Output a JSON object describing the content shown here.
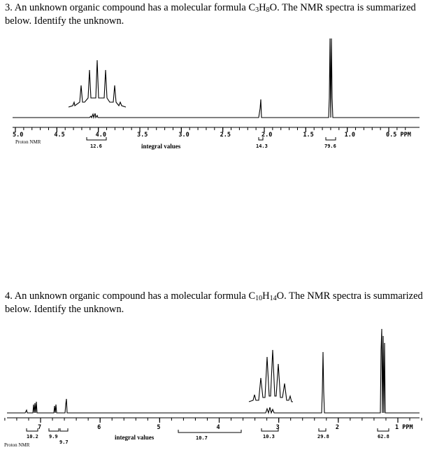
{
  "problem3": {
    "number": "3.",
    "text_before": "An unknown organic compound has a molecular formula C",
    "formula_C": "3",
    "formula_H_letter": "H",
    "formula_H": "8",
    "formula_O": "O",
    "text_after": ". The NMR spectra is summarized below. Identify the unknown.",
    "spectrum": {
      "label": "Proton NMR",
      "axis_ticks": [
        {
          "value": 5.0,
          "label": "5.0"
        },
        {
          "value": 4.5,
          "label": "4.5"
        },
        {
          "value": 4.0,
          "label": "4.0"
        },
        {
          "value": 3.5,
          "label": "3.5"
        },
        {
          "value": 3.0,
          "label": "3.0"
        },
        {
          "value": 2.5,
          "label": "2.5"
        },
        {
          "value": 2.0,
          "label": "2.0"
        },
        {
          "value": 1.5,
          "label": "1.5"
        },
        {
          "value": 1.0,
          "label": "1.0"
        },
        {
          "value": 0.5,
          "label": "0.5 PPM"
        }
      ],
      "integral_caption": "integral values",
      "integrals": [
        {
          "ppm": 4.0,
          "value": "12.6"
        },
        {
          "ppm": 2.0,
          "value": "14.3"
        },
        {
          "ppm": 1.2,
          "value": "79.6"
        }
      ]
    }
  },
  "problem4": {
    "number": "4.",
    "text_before": "An unknown organic compound has a molecular formula C",
    "formula_C": "10",
    "formula_H_letter": "H",
    "formula_H": "14",
    "formula_O": "O",
    "text_after": ". The NMR spectra is summarized below. Identify the unknown.",
    "spectrum": {
      "label": "Proton NMR",
      "axis_ticks": [
        {
          "value": 7,
          "label": "7"
        },
        {
          "value": 6,
          "label": "6"
        },
        {
          "value": 5,
          "label": "5"
        },
        {
          "value": 4,
          "label": "4"
        },
        {
          "value": 3,
          "label": "3"
        },
        {
          "value": 2,
          "label": "2"
        },
        {
          "value": 1,
          "label": "1 PPM"
        }
      ],
      "integral_caption": "integral values",
      "integrals": [
        {
          "value": "10.2"
        },
        {
          "value": "9.9"
        },
        {
          "value": "9.7"
        },
        {
          "value": "10.7"
        },
        {
          "value": "10.3"
        },
        {
          "value": "29.8"
        },
        {
          "value": "62.8"
        }
      ]
    }
  }
}
